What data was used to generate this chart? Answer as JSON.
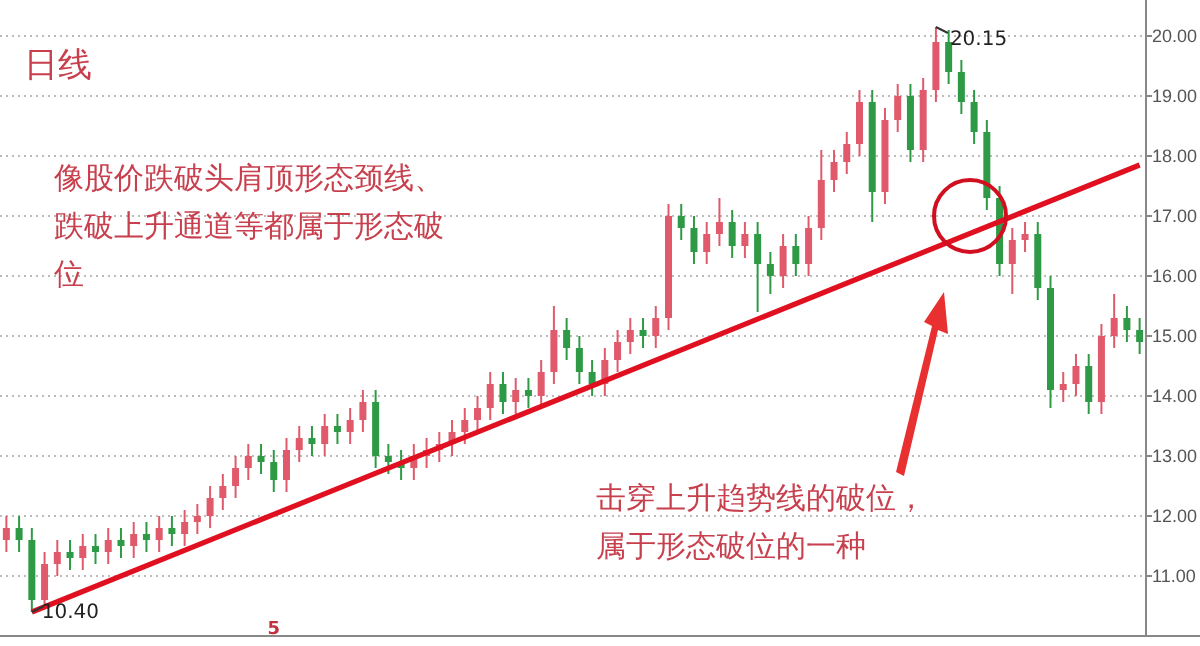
{
  "chart_data": {
    "type": "candlestick",
    "title": "日线",
    "annotations": [
      "像股价跌破头肩顶形态颈线、跌破上升通道等都属于形态破位",
      "击穿上升趋势线的破位，属于形态破位的一种",
      "20.15",
      "10.40"
    ],
    "categories": [
      null,
      null,
      null,
      null,
      null,
      null,
      null,
      null,
      null,
      null,
      null,
      null,
      null,
      null,
      null,
      null,
      null,
      null,
      null,
      null,
      null,
      "5",
      null,
      null,
      null,
      null,
      null,
      null,
      null,
      null,
      null,
      null,
      null,
      null,
      null,
      null,
      null,
      null,
      null,
      null,
      null,
      null,
      null,
      null,
      null,
      null,
      null,
      null,
      null,
      null,
      null,
      null,
      null,
      null,
      null,
      null,
      null,
      null,
      null,
      null,
      null,
      null,
      null,
      null,
      null,
      null,
      null,
      null,
      null,
      null,
      null,
      null,
      null,
      null,
      null,
      null,
      null,
      null,
      null,
      null,
      null,
      null,
      null,
      null,
      null,
      null,
      null,
      null,
      null,
      null
    ],
    "ohlc": [
      [
        11.6,
        12.0,
        11.4,
        11.8
      ],
      [
        11.8,
        12.0,
        11.4,
        11.6
      ],
      [
        11.6,
        11.8,
        10.4,
        10.6
      ],
      [
        10.6,
        11.4,
        10.5,
        11.2
      ],
      [
        11.2,
        11.6,
        11.0,
        11.4
      ],
      [
        11.4,
        11.6,
        11.1,
        11.3
      ],
      [
        11.3,
        11.7,
        11.1,
        11.5
      ],
      [
        11.5,
        11.7,
        11.2,
        11.4
      ],
      [
        11.4,
        11.8,
        11.2,
        11.6
      ],
      [
        11.6,
        11.8,
        11.3,
        11.5
      ],
      [
        11.5,
        11.9,
        11.3,
        11.7
      ],
      [
        11.7,
        11.9,
        11.4,
        11.6
      ],
      [
        11.6,
        12.0,
        11.4,
        11.8
      ],
      [
        11.8,
        12.0,
        11.5,
        11.7
      ],
      [
        11.7,
        12.1,
        11.5,
        11.9
      ],
      [
        11.9,
        12.2,
        11.7,
        12.0
      ],
      [
        12.0,
        12.5,
        11.8,
        12.3
      ],
      [
        12.3,
        12.7,
        12.1,
        12.5
      ],
      [
        12.5,
        13.0,
        12.3,
        12.8
      ],
      [
        12.8,
        13.2,
        12.6,
        13.0
      ],
      [
        13.0,
        13.2,
        12.7,
        12.9
      ],
      [
        12.9,
        13.1,
        12.4,
        12.6
      ],
      [
        12.6,
        13.3,
        12.4,
        13.1
      ],
      [
        13.1,
        13.5,
        12.9,
        13.3
      ],
      [
        13.3,
        13.5,
        13.0,
        13.2
      ],
      [
        13.2,
        13.7,
        13.0,
        13.5
      ],
      [
        13.5,
        13.7,
        13.2,
        13.4
      ],
      [
        13.4,
        13.8,
        13.2,
        13.6
      ],
      [
        13.6,
        14.1,
        13.4,
        13.9
      ],
      [
        13.9,
        14.1,
        12.8,
        13.0
      ],
      [
        13.0,
        13.2,
        12.7,
        12.9
      ],
      [
        12.9,
        13.1,
        12.6,
        12.8
      ],
      [
        12.8,
        13.2,
        12.6,
        13.0
      ],
      [
        13.0,
        13.3,
        12.8,
        13.1
      ],
      [
        13.1,
        13.4,
        12.9,
        13.2
      ],
      [
        13.2,
        13.6,
        13.0,
        13.4
      ],
      [
        13.4,
        13.8,
        13.2,
        13.6
      ],
      [
        13.6,
        14.0,
        13.4,
        13.8
      ],
      [
        13.8,
        14.4,
        13.6,
        14.2
      ],
      [
        14.2,
        14.4,
        13.7,
        13.9
      ],
      [
        13.9,
        14.3,
        13.7,
        14.1
      ],
      [
        14.1,
        14.3,
        13.8,
        14.0
      ],
      [
        14.0,
        14.6,
        13.8,
        14.4
      ],
      [
        14.4,
        15.5,
        14.2,
        15.1
      ],
      [
        15.1,
        15.3,
        14.6,
        14.8
      ],
      [
        14.8,
        15.0,
        14.2,
        14.4
      ],
      [
        14.4,
        14.6,
        14.0,
        14.2
      ],
      [
        14.2,
        14.8,
        14.0,
        14.6
      ],
      [
        14.6,
        15.1,
        14.4,
        14.9
      ],
      [
        14.9,
        15.3,
        14.7,
        15.1
      ],
      [
        15.1,
        15.3,
        14.8,
        15.0
      ],
      [
        15.0,
        15.5,
        14.8,
        15.3
      ],
      [
        15.3,
        17.2,
        15.1,
        17.0
      ],
      [
        17.0,
        17.2,
        16.6,
        16.8
      ],
      [
        16.8,
        17.0,
        16.2,
        16.4
      ],
      [
        16.4,
        16.9,
        16.2,
        16.7
      ],
      [
        16.7,
        17.3,
        16.5,
        16.9
      ],
      [
        16.9,
        17.1,
        16.3,
        16.5
      ],
      [
        16.5,
        16.9,
        16.3,
        16.7
      ],
      [
        16.7,
        16.9,
        15.4,
        16.2
      ],
      [
        16.2,
        16.4,
        15.7,
        16.0
      ],
      [
        16.0,
        16.7,
        15.8,
        16.5
      ],
      [
        16.5,
        16.7,
        16.0,
        16.2
      ],
      [
        16.2,
        17.0,
        16.0,
        16.8
      ],
      [
        16.8,
        18.1,
        16.6,
        17.6
      ],
      [
        17.6,
        18.1,
        17.4,
        17.9
      ],
      [
        17.9,
        18.4,
        17.7,
        18.2
      ],
      [
        18.2,
        19.1,
        18.0,
        18.9
      ],
      [
        18.9,
        19.1,
        16.9,
        17.4
      ],
      [
        17.4,
        18.8,
        17.2,
        18.6
      ],
      [
        18.6,
        19.2,
        18.4,
        19.0
      ],
      [
        19.0,
        19.2,
        17.9,
        18.1
      ],
      [
        18.1,
        19.3,
        17.9,
        19.1
      ],
      [
        19.1,
        20.15,
        18.9,
        19.9
      ],
      [
        19.9,
        20.1,
        19.2,
        19.4
      ],
      [
        19.4,
        19.6,
        18.7,
        18.9
      ],
      [
        18.9,
        19.1,
        18.2,
        18.4
      ],
      [
        18.4,
        18.6,
        17.1,
        17.3
      ],
      [
        17.3,
        17.5,
        16.0,
        16.2
      ],
      [
        16.2,
        16.8,
        15.7,
        16.6
      ],
      [
        16.6,
        16.9,
        16.4,
        16.7
      ],
      [
        16.7,
        16.9,
        15.6,
        15.8
      ],
      [
        15.8,
        16.0,
        13.8,
        14.1
      ],
      [
        14.1,
        14.4,
        13.9,
        14.2
      ],
      [
        14.2,
        14.7,
        14.0,
        14.5
      ],
      [
        14.5,
        14.7,
        13.7,
        13.9
      ],
      [
        13.9,
        15.2,
        13.7,
        15.0
      ],
      [
        15.0,
        15.7,
        14.8,
        15.3
      ],
      [
        15.3,
        15.5,
        14.9,
        15.1
      ],
      [
        15.1,
        15.3,
        14.7,
        14.9
      ]
    ],
    "series": [
      {
        "type": "line",
        "values": [
          null,
          null,
          10.4,
          null,
          null,
          null,
          null,
          null,
          null,
          null,
          null,
          null,
          null,
          null,
          null,
          null,
          null,
          null,
          null,
          null,
          null,
          null,
          null,
          null,
          null,
          null,
          null,
          null,
          null,
          null,
          null,
          null,
          null,
          null,
          null,
          null,
          null,
          null,
          null,
          null,
          null,
          null,
          null,
          null,
          null,
          null,
          null,
          null,
          null,
          null,
          null,
          null,
          null,
          null,
          null,
          null,
          null,
          null,
          null,
          null,
          null,
          null,
          null,
          null,
          null,
          null,
          null,
          null,
          null,
          null,
          null,
          null,
          null,
          null,
          null,
          null,
          null,
          null,
          null,
          null,
          null,
          null,
          null,
          null,
          null,
          null,
          null,
          null,
          null,
          17.85
        ],
        "color": "#e01020"
      }
    ],
    "ylim": [
      10.0,
      20.6
    ],
    "yticks": [
      {
        "value": 11,
        "label": "11.00"
      },
      {
        "value": 12,
        "label": "12.00"
      },
      {
        "value": 13,
        "label": "13.00"
      },
      {
        "value": 14,
        "label": "14.00"
      },
      {
        "value": 15,
        "label": "15.00"
      },
      {
        "value": 16,
        "label": "16.00"
      },
      {
        "value": 17,
        "label": "17.00"
      },
      {
        "value": 18,
        "label": "18.00"
      },
      {
        "value": 19,
        "label": "19.00"
      },
      {
        "value": 20,
        "label": "20.00"
      }
    ],
    "grid": "y"
  }
}
